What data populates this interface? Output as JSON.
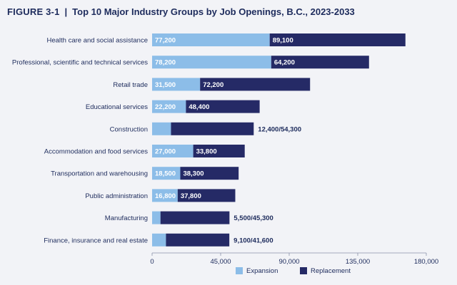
{
  "figure": {
    "label": "FIGURE 3-1",
    "separator": "|",
    "title": "Top 10 Major Industry Groups by Job Openings, B.C., 2023-2033"
  },
  "colors": {
    "expansion": "#8cbde8",
    "replacement": "#252a66",
    "background": "#f2f3f7",
    "text": "#1d2b5c"
  },
  "chart_data": {
    "type": "bar",
    "orientation": "horizontal",
    "stacked": true,
    "title": "Top 10 Major Industry Groups by Job Openings, B.C., 2023-2033",
    "categories": [
      "Health care and social assistance",
      "Professional, scientific and technical services",
      "Retail trade",
      "Educational services",
      "Construction",
      "Accommodation and food services",
      "Transportation and warehousing",
      "Public administration",
      "Manufacturing",
      "Finance, insurance and real estate"
    ],
    "series": [
      {
        "name": "Expansion",
        "values": [
          77200,
          78200,
          31500,
          22200,
          12400,
          27000,
          18500,
          16800,
          5500,
          9100
        ],
        "labels": [
          "77,200",
          "78,200",
          "31,500",
          "22,200",
          "",
          "27,000",
          "18,500",
          "16,800",
          "",
          ""
        ]
      },
      {
        "name": "Replacement",
        "values": [
          89100,
          64200,
          72200,
          48400,
          54300,
          33800,
          38300,
          37800,
          45300,
          41600
        ],
        "labels": [
          "89,100",
          "64,200",
          "72,200",
          "48,400",
          "",
          "33,800",
          "38,300",
          "37,800",
          "",
          ""
        ]
      }
    ],
    "outside_labels": [
      "",
      "",
      "",
      "",
      "12,400/54,300",
      "",
      "",
      "",
      "5,500/45,300",
      "9,100/41,600"
    ],
    "xlim": [
      0,
      180000
    ],
    "xticks": [
      0,
      45000,
      90000,
      135000,
      180000
    ],
    "xtick_labels": [
      "0",
      "45,000",
      "90,000",
      "135,000",
      "180,000"
    ],
    "grid": false,
    "legend_position": "bottom"
  }
}
